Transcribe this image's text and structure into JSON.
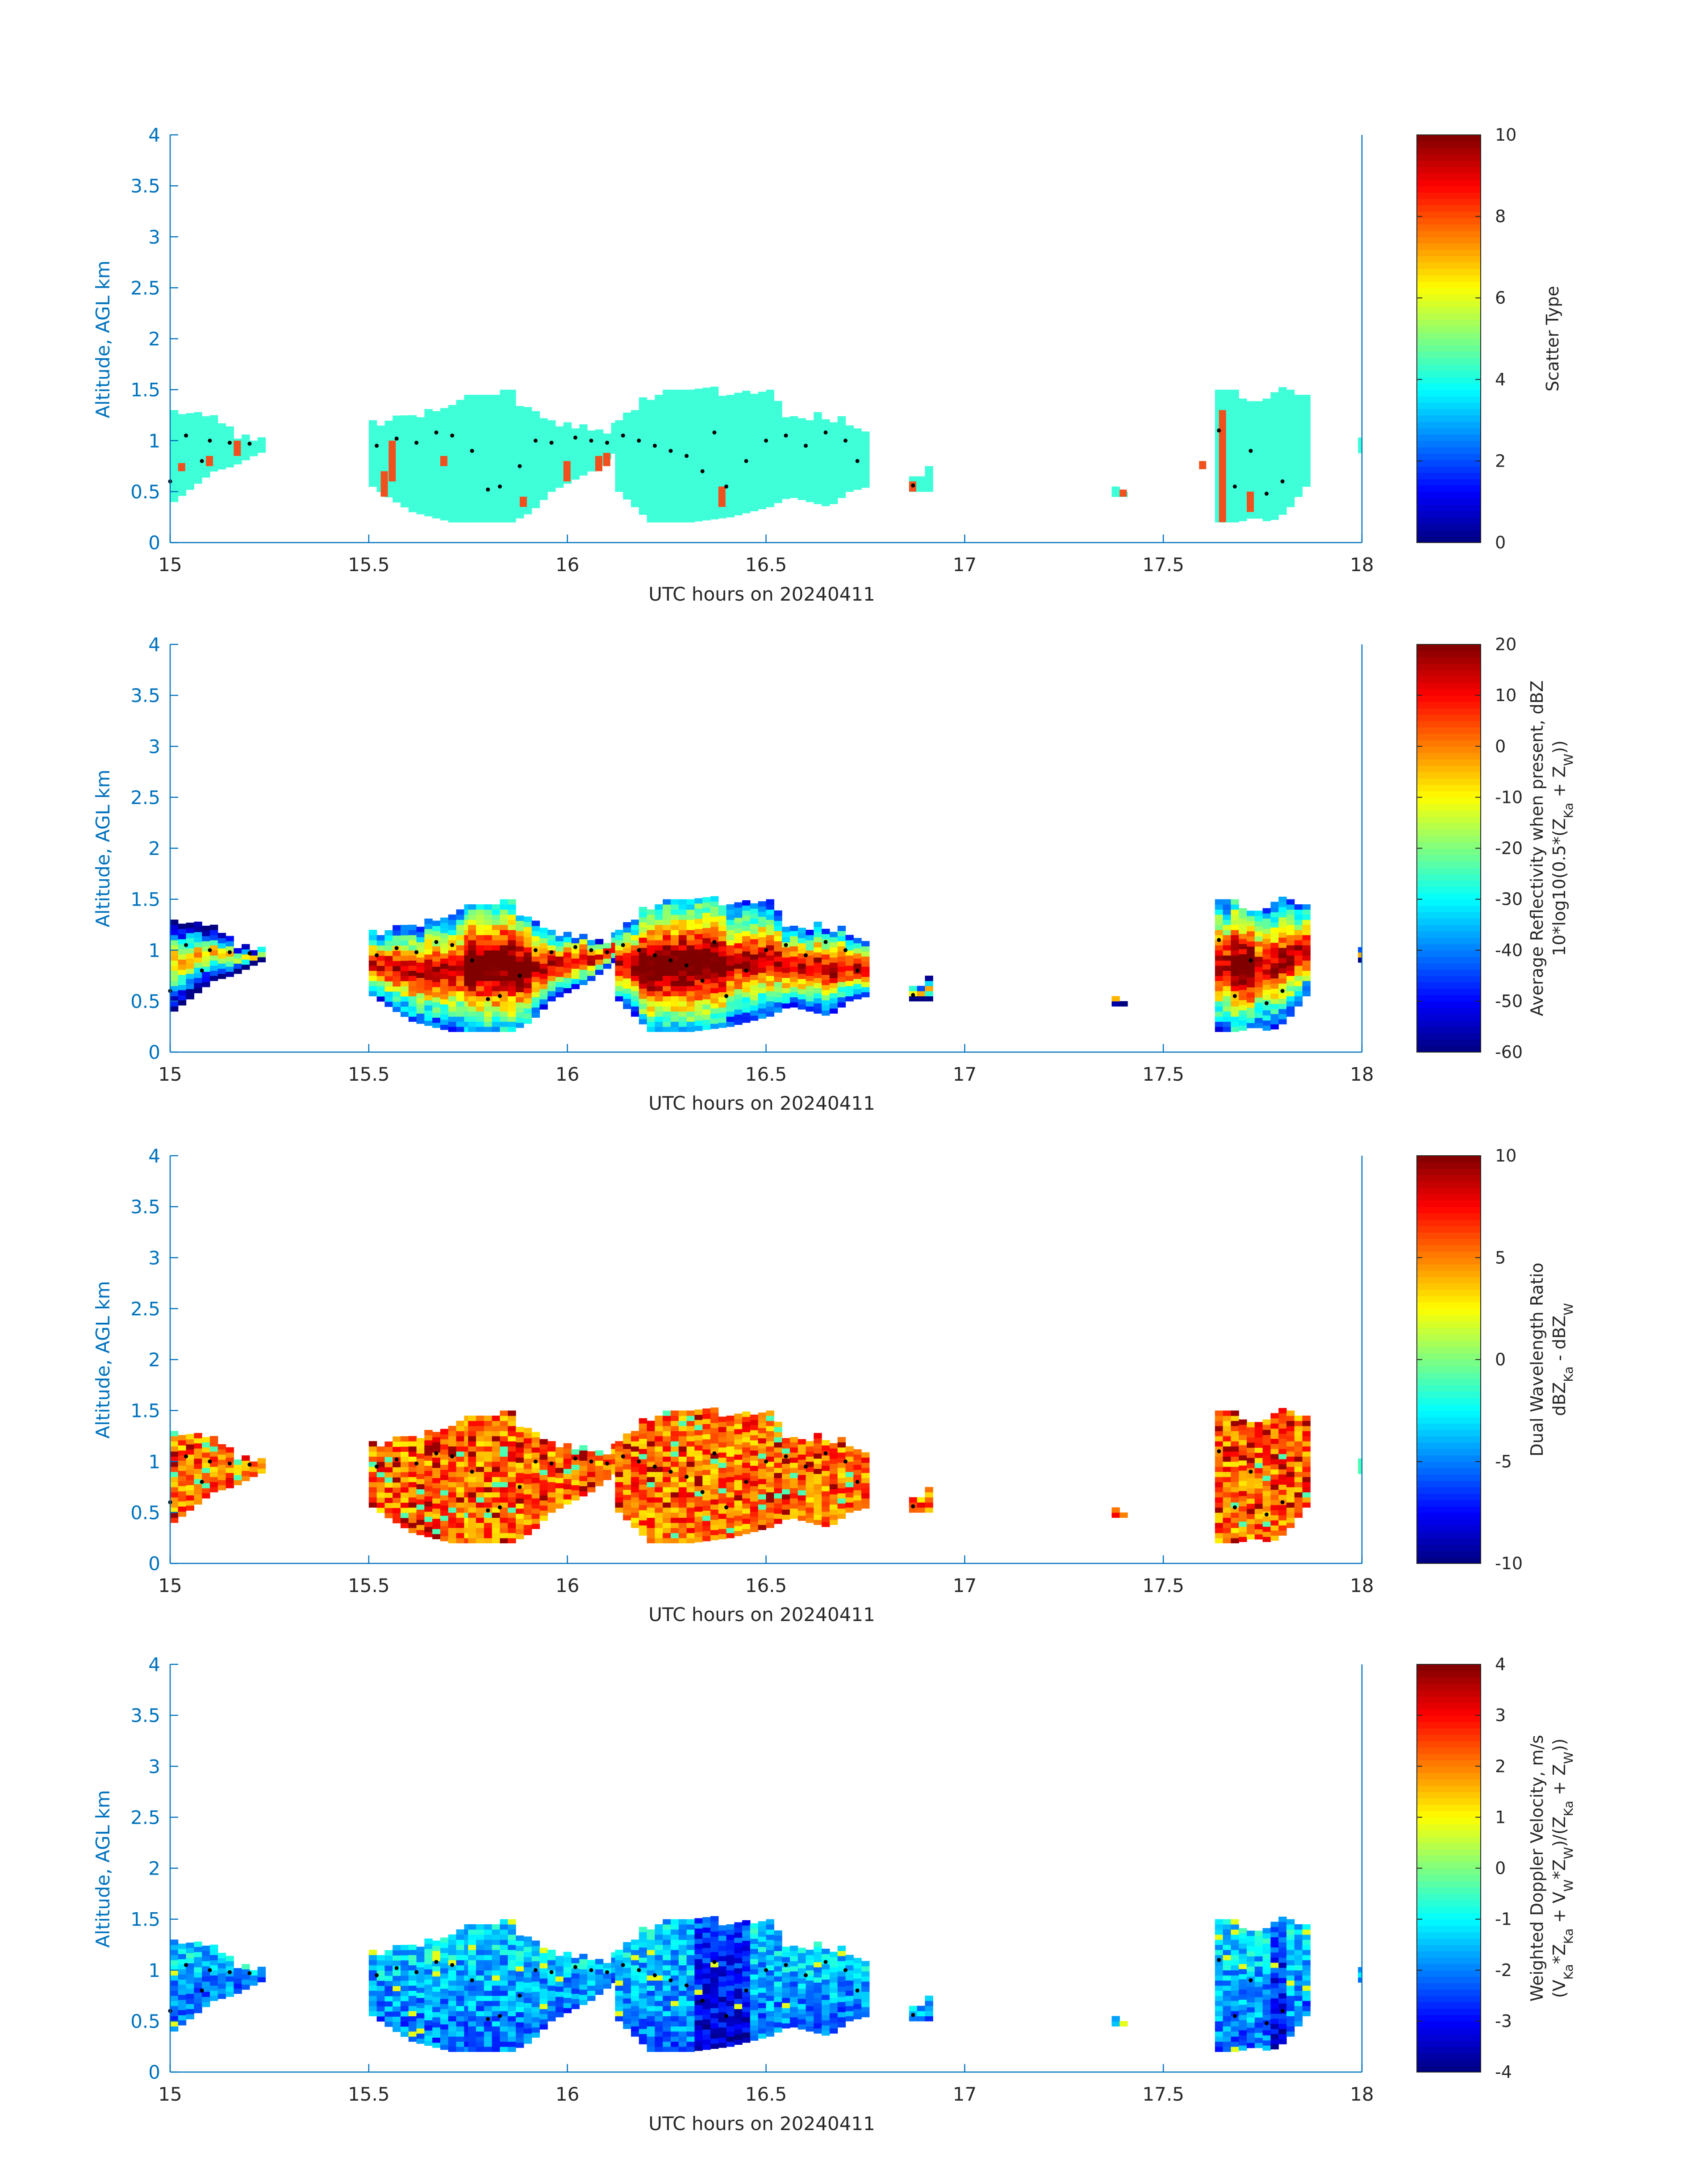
{
  "colors": {
    "axis": "#0072BD",
    "text": "#262626",
    "scatter_cyan": "#3FFFD8",
    "scatter_red": "#F0501E",
    "dot": "#000000",
    "background": "#FFFFFF"
  },
  "chart_data": [
    {
      "type": "heatmap",
      "title": "",
      "xlabel": "UTC hours on 20240411",
      "ylabel": "Altitude, AGL km",
      "xlim": [
        15,
        18
      ],
      "ylim": [
        0,
        4
      ],
      "x_ticks": [
        15,
        15.5,
        16,
        16.5,
        17,
        17.5,
        18
      ],
      "x_tick_labels": [
        "15",
        "15.5",
        "16",
        "16.5",
        "17",
        "17.5",
        "18"
      ],
      "y_ticks": [
        0,
        0.5,
        1,
        1.5,
        2,
        2.5,
        3,
        3.5,
        4
      ],
      "y_tick_labels": [
        "0",
        "0.5",
        "1",
        "1.5",
        "2",
        "2.5",
        "3",
        "3.5",
        "4"
      ],
      "colorbar": {
        "label": "Scatter Type",
        "label2": "",
        "clim": [
          0,
          10
        ],
        "ticks": [
          0,
          2,
          4,
          6,
          8,
          10
        ],
        "tick_labels": [
          "0",
          "2",
          "4",
          "6",
          "8",
          "10"
        ],
        "colormap": "jet"
      },
      "field": "scatter",
      "colorbar_label_html": "Scatter Type",
      "colorbar_label2_html": "",
      "dominant_value": 3.5,
      "secondary_value": 7.7
    },
    {
      "type": "heatmap",
      "title": "",
      "xlabel": "UTC hours on 20240411",
      "ylabel": "Altitude, AGL km",
      "xlim": [
        15,
        18
      ],
      "ylim": [
        0,
        4
      ],
      "x_ticks": [
        15,
        15.5,
        16,
        16.5,
        17,
        17.5,
        18
      ],
      "x_tick_labels": [
        "15",
        "15.5",
        "16",
        "16.5",
        "17",
        "17.5",
        "18"
      ],
      "y_ticks": [
        0,
        0.5,
        1,
        1.5,
        2,
        2.5,
        3,
        3.5,
        4
      ],
      "y_tick_labels": [
        "0",
        "0.5",
        "1",
        "1.5",
        "2",
        "2.5",
        "3",
        "3.5",
        "4"
      ],
      "colorbar": {
        "label": "Average Reflectivity when present, dBZ",
        "label2": "10*log10(0.5*(Z_Ka + Z_W))",
        "clim": [
          -60,
          20
        ],
        "ticks": [
          -60,
          -50,
          -40,
          -30,
          -20,
          -10,
          0,
          10,
          20
        ],
        "tick_labels": [
          "-60",
          "-50",
          "-40",
          "-30",
          "-20",
          "-10",
          "0",
          "10",
          "20"
        ],
        "colormap": "jet"
      },
      "field": "reflectivity",
      "colorbar_label_html": "Average Reflectivity when present, dBZ",
      "colorbar_label2_html": "10*log10(0.5*(Z<tspan baseline-shift='sub' font-size='28'>Ka</tspan> + Z<tspan baseline-shift='sub' font-size='28'>W</tspan>))"
    },
    {
      "type": "heatmap",
      "title": "",
      "xlabel": "UTC hours on 20240411",
      "ylabel": "Altitude, AGL km",
      "xlim": [
        15,
        18
      ],
      "ylim": [
        0,
        4
      ],
      "x_ticks": [
        15,
        15.5,
        16,
        16.5,
        17,
        17.5,
        18
      ],
      "x_tick_labels": [
        "15",
        "15.5",
        "16",
        "16.5",
        "17",
        "17.5",
        "18"
      ],
      "y_ticks": [
        0,
        0.5,
        1,
        1.5,
        2,
        2.5,
        3,
        3.5,
        4
      ],
      "y_tick_labels": [
        "0",
        "0.5",
        "1",
        "1.5",
        "2",
        "2.5",
        "3",
        "3.5",
        "4"
      ],
      "colorbar": {
        "label": "Dual Wavelength Ratio",
        "label2": "dBZ_Ka - dBZ_W",
        "clim": [
          -10,
          10
        ],
        "ticks": [
          -10,
          -5,
          0,
          5,
          10
        ],
        "tick_labels": [
          "-10",
          "-5",
          "0",
          "5",
          "10"
        ],
        "colormap": "jet"
      },
      "field": "dwr",
      "colorbar_label_html": "Dual Wavelength Ratio",
      "colorbar_label2_html": "dBZ<tspan baseline-shift='sub' font-size='28'>Ka</tspan> - dBZ<tspan baseline-shift='sub' font-size='28'>W</tspan>"
    },
    {
      "type": "heatmap",
      "title": "",
      "xlabel": "UTC hours on 20240411",
      "ylabel": "Altitude, AGL km",
      "xlim": [
        15,
        18
      ],
      "ylim": [
        0,
        4
      ],
      "x_ticks": [
        15,
        15.5,
        16,
        16.5,
        17,
        17.5,
        18
      ],
      "x_tick_labels": [
        "15",
        "15.5",
        "16",
        "16.5",
        "17",
        "17.5",
        "18"
      ],
      "y_ticks": [
        0,
        0.5,
        1,
        1.5,
        2,
        2.5,
        3,
        3.5,
        4
      ],
      "y_tick_labels": [
        "0",
        "0.5",
        "1",
        "1.5",
        "2",
        "2.5",
        "3",
        "3.5",
        "4"
      ],
      "colorbar": {
        "label": "Weighted Doppler Velocity, m/s",
        "label2": "(V_Ka*Z_Ka + V_W*Z_W)/(Z_Ka + Z_W))",
        "clim": [
          -4,
          4
        ],
        "ticks": [
          -4,
          -3,
          -2,
          -1,
          0,
          1,
          2,
          3,
          4
        ],
        "tick_labels": [
          "-4",
          "-3",
          "-2",
          "-1",
          "0",
          "1",
          "2",
          "3",
          "4"
        ],
        "colormap": "jet"
      },
      "field": "velocity",
      "colorbar_label_html": "Weighted Doppler Velocity, m/s",
      "colorbar_label2_html": "(V<tspan baseline-shift='sub' font-size='28'>Ka</tspan>*Z<tspan baseline-shift='sub' font-size='28'>Ka</tspan> + V<tspan baseline-shift='sub' font-size='28'>W</tspan>*Z<tspan baseline-shift='sub' font-size='28'>W</tspan>)/(Z<tspan baseline-shift='sub' font-size='28'>Ka</tspan> + Z<tspan baseline-shift='sub' font-size='28'>W</tspan>))"
    }
  ],
  "echo_segments": [
    {
      "x0": 15.0,
      "x1": 15.23,
      "profile": [
        [
          15.0,
          0.4,
          1.25
        ],
        [
          15.05,
          0.55,
          1.2
        ],
        [
          15.1,
          0.7,
          1.15
        ],
        [
          15.15,
          0.75,
          1.08
        ],
        [
          15.2,
          0.85,
          1.0
        ],
        [
          15.23,
          0.9,
          0.98
        ]
      ]
    },
    {
      "x0": 15.5,
      "x1": 15.75,
      "profile": [
        [
          15.5,
          0.55,
          1.12
        ],
        [
          15.55,
          0.42,
          1.18
        ],
        [
          15.6,
          0.3,
          1.25
        ],
        [
          15.65,
          0.25,
          1.28
        ],
        [
          15.7,
          0.2,
          1.35
        ],
        [
          15.75,
          0.2,
          1.4
        ]
      ]
    },
    {
      "x0": 15.75,
      "x1": 16.12,
      "profile": [
        [
          15.75,
          0.2,
          1.4
        ],
        [
          15.8,
          0.2,
          1.48
        ],
        [
          15.85,
          0.2,
          1.4
        ],
        [
          15.9,
          0.3,
          1.25
        ],
        [
          15.95,
          0.5,
          1.2
        ],
        [
          16.0,
          0.6,
          1.15
        ],
        [
          16.05,
          0.7,
          1.12
        ],
        [
          16.1,
          0.85,
          1.1
        ],
        [
          16.12,
          0.9,
          1.2
        ]
      ]
    },
    {
      "x0": 16.12,
      "x1": 16.75,
      "profile": [
        [
          16.12,
          0.5,
          1.25
        ],
        [
          16.2,
          0.2,
          1.4
        ],
        [
          16.3,
          0.2,
          1.45
        ],
        [
          16.4,
          0.25,
          1.45
        ],
        [
          16.5,
          0.35,
          1.4
        ],
        [
          16.55,
          0.45,
          1.2
        ],
        [
          16.6,
          0.4,
          1.2
        ],
        [
          16.65,
          0.35,
          1.18
        ],
        [
          16.7,
          0.5,
          1.15
        ],
        [
          16.75,
          0.55,
          1.1
        ]
      ]
    },
    {
      "x0": 16.86,
      "x1": 16.9,
      "profile": [
        [
          16.86,
          0.5,
          0.65
        ],
        [
          16.9,
          0.5,
          0.65
        ]
      ]
    },
    {
      "x0": 17.37,
      "x1": 17.4,
      "profile": [
        [
          17.37,
          0.45,
          0.52
        ],
        [
          17.4,
          0.45,
          0.52
        ]
      ]
    },
    {
      "x0": 17.63,
      "x1": 17.85,
      "profile": [
        [
          17.63,
          0.2,
          1.45
        ],
        [
          17.68,
          0.2,
          1.5
        ],
        [
          17.72,
          0.25,
          1.3
        ],
        [
          17.76,
          0.2,
          1.45
        ],
        [
          17.8,
          0.3,
          1.45
        ],
        [
          17.85,
          0.55,
          1.4
        ]
      ]
    },
    {
      "x0": 17.99,
      "x1": 18.0,
      "profile": [
        [
          17.99,
          0.88,
          1.0
        ],
        [
          18.0,
          0.88,
          1.0
        ]
      ]
    }
  ],
  "dots": [
    [
      15.0,
      0.6
    ],
    [
      15.04,
      1.05
    ],
    [
      15.08,
      0.8
    ],
    [
      15.1,
      1.0
    ],
    [
      15.15,
      0.98
    ],
    [
      15.2,
      0.97
    ],
    [
      15.52,
      0.95
    ],
    [
      15.57,
      1.02
    ],
    [
      15.62,
      0.98
    ],
    [
      15.67,
      1.08
    ],
    [
      15.71,
      1.05
    ],
    [
      15.76,
      0.9
    ],
    [
      15.8,
      0.52
    ],
    [
      15.83,
      0.55
    ],
    [
      15.88,
      0.75
    ],
    [
      15.92,
      1.0
    ],
    [
      15.96,
      0.98
    ],
    [
      16.02,
      1.03
    ],
    [
      16.06,
      1.0
    ],
    [
      16.1,
      0.98
    ],
    [
      16.14,
      1.05
    ],
    [
      16.18,
      1.0
    ],
    [
      16.22,
      0.95
    ],
    [
      16.26,
      0.9
    ],
    [
      16.3,
      0.85
    ],
    [
      16.34,
      0.7
    ],
    [
      16.37,
      1.08
    ],
    [
      16.4,
      0.55
    ],
    [
      16.45,
      0.8
    ],
    [
      16.5,
      1.0
    ],
    [
      16.55,
      1.05
    ],
    [
      16.6,
      0.95
    ],
    [
      16.65,
      1.08
    ],
    [
      16.7,
      1.0
    ],
    [
      16.73,
      0.8
    ],
    [
      16.87,
      0.56
    ],
    [
      17.64,
      1.1
    ],
    [
      17.68,
      0.55
    ],
    [
      17.72,
      0.9
    ],
    [
      17.76,
      0.48
    ],
    [
      17.8,
      0.6
    ]
  ],
  "red_columns": [
    [
      15.02,
      0.7,
      0.78
    ],
    [
      15.09,
      0.75,
      0.85
    ],
    [
      15.16,
      0.85,
      1.0
    ],
    [
      15.53,
      0.45,
      0.7
    ],
    [
      15.55,
      0.6,
      1.0
    ],
    [
      15.68,
      0.75,
      0.85
    ],
    [
      15.88,
      0.35,
      0.45
    ],
    [
      15.99,
      0.6,
      0.8
    ],
    [
      16.07,
      0.7,
      0.85
    ],
    [
      16.09,
      0.75,
      0.88
    ],
    [
      16.38,
      0.35,
      0.55
    ],
    [
      16.86,
      0.5,
      0.6
    ],
    [
      17.39,
      0.45,
      0.52
    ],
    [
      17.59,
      0.72,
      0.8
    ],
    [
      17.64,
      0.2,
      1.3
    ],
    [
      17.71,
      0.3,
      0.5
    ]
  ]
}
